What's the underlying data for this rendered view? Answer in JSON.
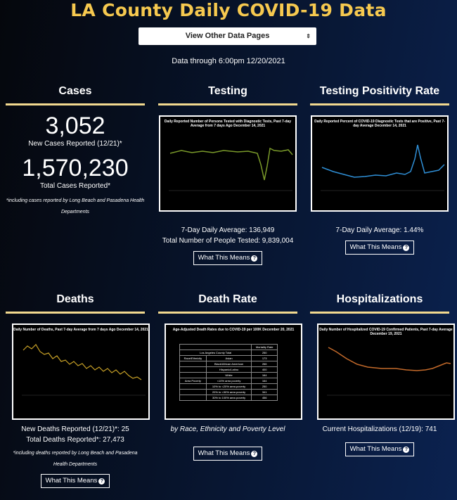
{
  "page": {
    "title": "LA County Daily COVID-19 Data"
  },
  "nav": {
    "select_label": "View Other Data Pages",
    "arrow": "⇕"
  },
  "data_through": "Data through 6:00pm 12/20/2021",
  "cases": {
    "heading": "Cases",
    "new_value": "3,052",
    "new_label": "New Cases Reported (12/21)*",
    "total_value": "1,570,230",
    "total_label": "Total Cases Reported*",
    "note": "*including cases reported by Long Beach and Pasadena Health Departments"
  },
  "testing": {
    "heading": "Testing",
    "chart_title": "Daily Reported Number of Persons Tested with Diagnostic Tests, Past 7-day Average from 7 days Ago December 14, 2021",
    "avg": "7-Day Daily Average: 136,949",
    "total": "Total Number of People Tested: 9,839,004",
    "button": "What This Means"
  },
  "positivity": {
    "heading": "Testing Positivity Rate",
    "chart_title": "Daily Reported Percent of COVID-19 Diagnostic Tests that are Positive, Past 7-day Average December 14, 2021",
    "avg": "7-Day Daily Average: 1.44%",
    "button": "What This Means"
  },
  "deaths": {
    "heading": "Deaths",
    "chart_title": "Daily Number of Deaths, Past 7-day Average from 7 days Ago December 14, 2021",
    "new": "New Deaths Reported (12/21)*: 25",
    "total": "Total Deaths Reported*: 27,473",
    "note": "*including deaths reported by Long Beach and Pasadena Health Departments",
    "button": "What This Means"
  },
  "death_rate": {
    "heading": "Death Rate",
    "chart_title": "Age-Adjusted Death Rates due to COVID-19 per 100K December 20, 2021",
    "table_header": "Mortality Rate",
    "table_region": "Los Angeles County Total",
    "table_total": "250",
    "rows": [
      [
        "Race/Ethnicity",
        "Asian",
        "173"
      ],
      [
        "",
        "Black/African American",
        "266"
      ],
      [
        "",
        "Hispanic/Latino",
        "400"
      ],
      [
        "",
        "White",
        "164"
      ],
      [
        "Area Poverty",
        "<10% area poverty",
        "164"
      ],
      [
        "",
        "10% to <20% area poverty",
        "250"
      ],
      [
        "",
        "20% to <30% area poverty",
        "341"
      ],
      [
        "",
        "30% to 100% area poverty",
        "456"
      ]
    ],
    "caption": "by Race, Ethnicity and Poverty Level",
    "button": "What This Means"
  },
  "hosp": {
    "heading": "Hospitalizations",
    "chart_title": "Daily Number of Hospitalized COVID-19 Confirmed Patients, Past 7-day Average December 19, 2021",
    "current": "Current Hospitalizations (12/19): 741",
    "button": "What This Means"
  },
  "colors": {
    "title": "#f6c94f",
    "rule": "#f2d98f",
    "testing_line": "#7a9a2a",
    "positivity_line": "#2f8fd6",
    "deaths_line": "#c9a227",
    "hosp_line": "#c46a2a"
  }
}
